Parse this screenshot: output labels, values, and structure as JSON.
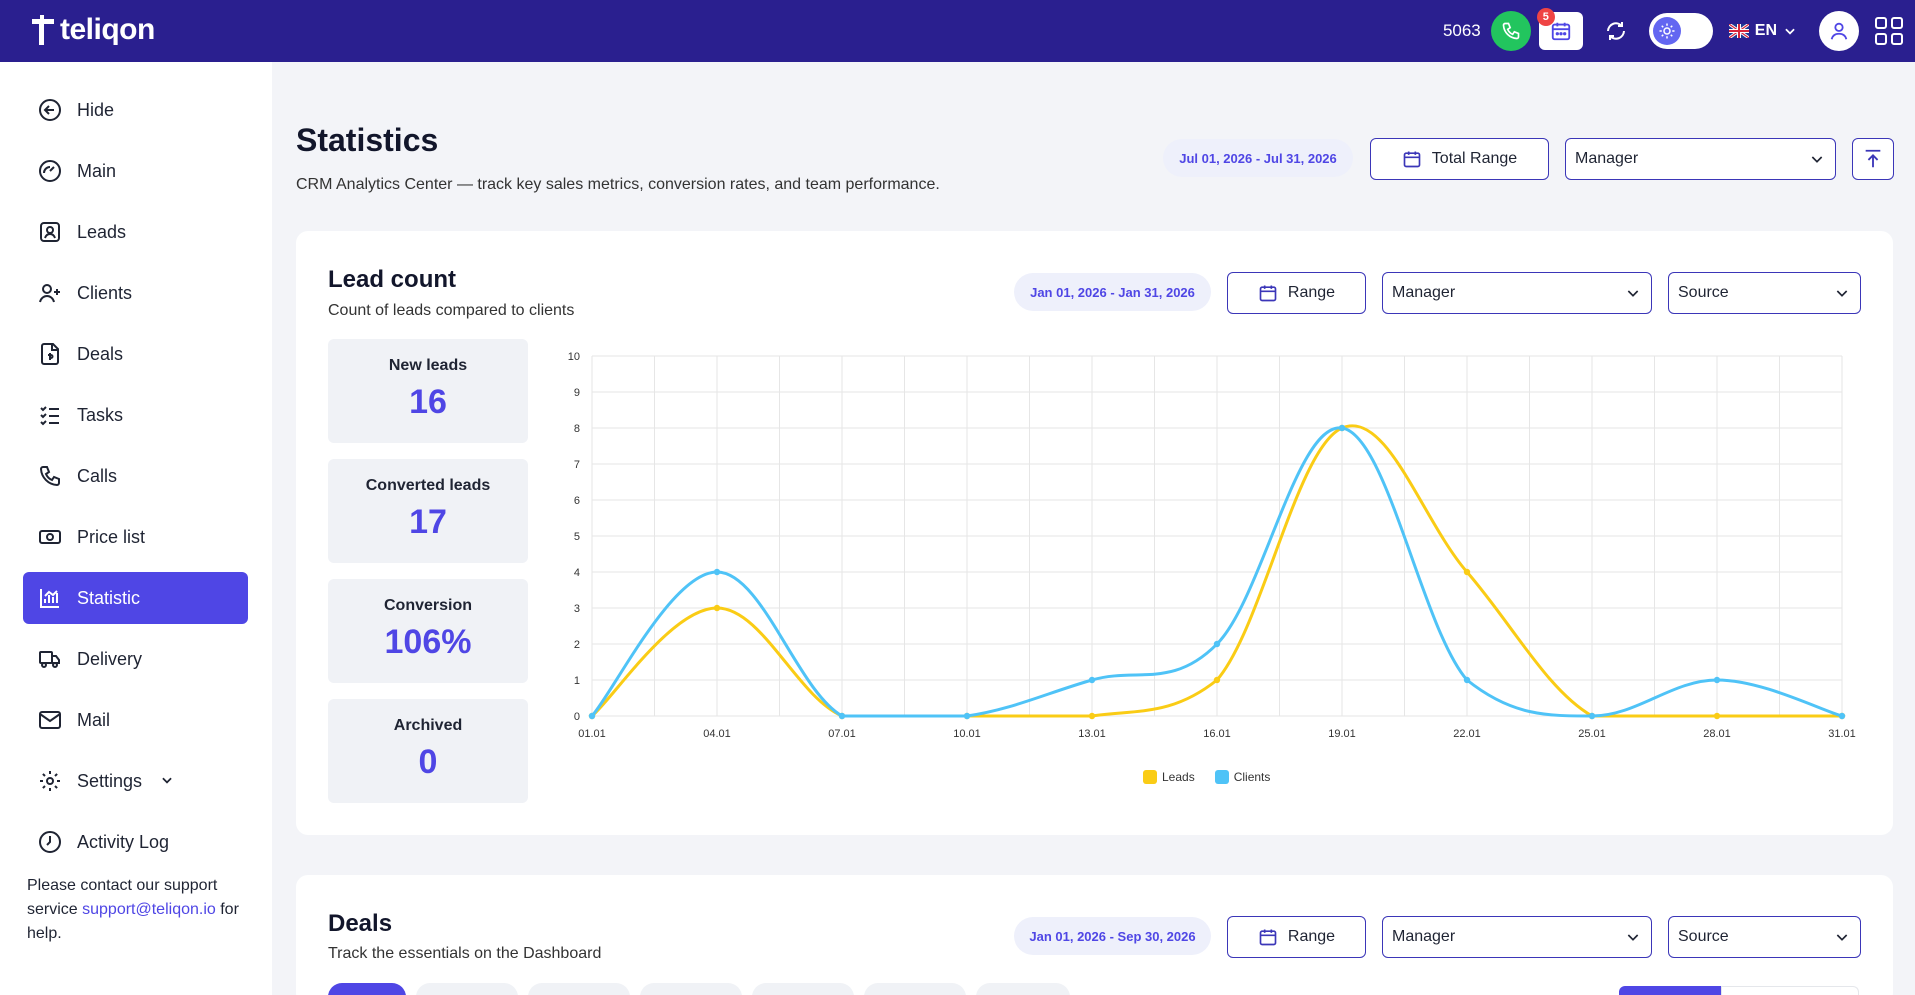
{
  "brand": {
    "name": "teliqon"
  },
  "topbar": {
    "extension": "5063",
    "notifications_count": "5",
    "language": "EN"
  },
  "sidebar": {
    "items": [
      {
        "label": "Hide",
        "icon": "arrow-left-circle-icon"
      },
      {
        "label": "Main",
        "icon": "dashboard-gauge-icon"
      },
      {
        "label": "Leads",
        "icon": "user-badge-icon"
      },
      {
        "label": "Clients",
        "icon": "user-plus-icon"
      },
      {
        "label": "Deals",
        "icon": "document-dollar-icon"
      },
      {
        "label": "Tasks",
        "icon": "checklist-icon"
      },
      {
        "label": "Calls",
        "icon": "phone-icon"
      },
      {
        "label": "Price list",
        "icon": "money-icon"
      },
      {
        "label": "Statistic",
        "icon": "bar-chart-icon",
        "active": true
      },
      {
        "label": "Delivery",
        "icon": "truck-icon"
      },
      {
        "label": "Mail",
        "icon": "mail-icon"
      },
      {
        "label": "Settings",
        "icon": "gear-icon"
      },
      {
        "label": "Activity Log",
        "icon": "clock-icon"
      }
    ],
    "support_before": "Please contact our support service ",
    "support_email": "support@teliqon.io",
    "support_after": " for help."
  },
  "header": {
    "title": "Statistics",
    "subtitle": "CRM Analytics Center — track key sales metrics, conversion rates, and team performance.",
    "date_range": "Jul 01, 2026 - Jul 31, 2026",
    "range_button": "Total Range",
    "manager_select": "Manager"
  },
  "lead_count": {
    "title": "Lead count",
    "subtitle": "Count of leads compared to clients",
    "date_range": "Jan 01, 2026 - Jan 31, 2026",
    "range_button": "Range",
    "manager_select": "Manager",
    "source_select": "Source",
    "stats": [
      {
        "label": "New leads",
        "value": "16"
      },
      {
        "label": "Converted leads",
        "value": "17"
      },
      {
        "label": "Conversion",
        "value": "106%"
      },
      {
        "label": "Archived",
        "value": "0"
      }
    ]
  },
  "deals": {
    "title": "Deals",
    "subtitle": "Track the essentials on the Dashboard",
    "date_range": "Jan 01, 2026 - Sep 30, 2026",
    "range_button": "Range",
    "manager_select": "Manager",
    "source_select": "Source"
  },
  "chart_data": {
    "type": "line",
    "x": [
      "01.01",
      "04.01",
      "07.01",
      "10.01",
      "13.01",
      "16.01",
      "19.01",
      "22.01",
      "25.01",
      "28.01",
      "31.01"
    ],
    "series": [
      {
        "name": "Leads",
        "color": "#facc15",
        "values": [
          0,
          3,
          0,
          0,
          0,
          1,
          8,
          4,
          0,
          0,
          0
        ]
      },
      {
        "name": "Clients",
        "color": "#4fc3f7",
        "values": [
          0,
          4,
          0,
          0,
          1,
          2,
          8,
          1,
          0,
          1,
          0
        ]
      }
    ],
    "ylim": [
      0,
      10
    ],
    "yticks": [
      "0",
      "1",
      "2",
      "3",
      "4",
      "5",
      "6",
      "7",
      "8",
      "9",
      "10"
    ],
    "grid": true,
    "legend": "bottom"
  }
}
